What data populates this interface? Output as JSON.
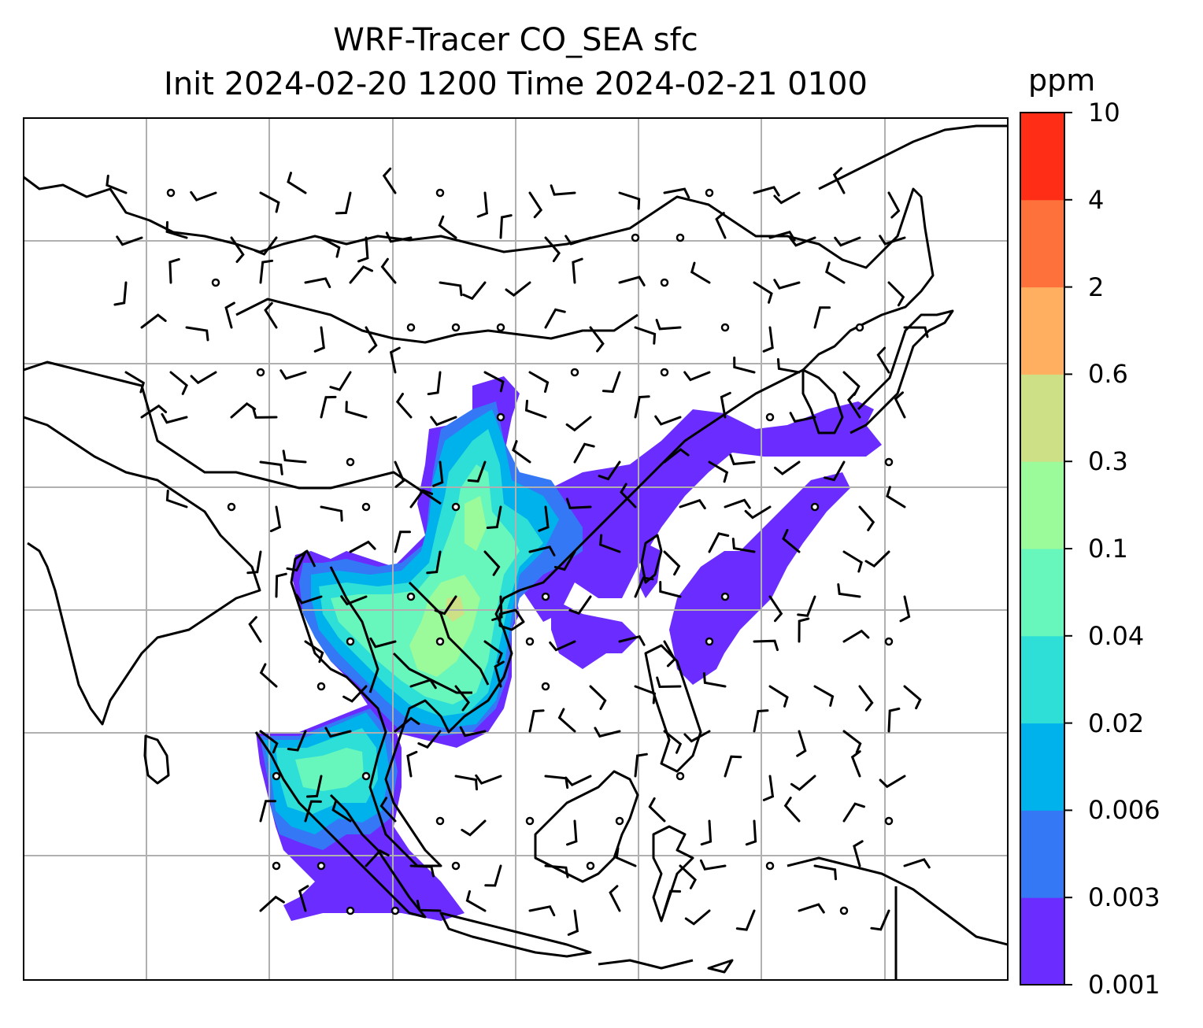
{
  "title": {
    "line1": "WRF-Tracer CO_SEA sfc",
    "line2": "Init 2024-02-20 1200 Time 2024-02-21 0100"
  },
  "colorbar": {
    "unit": "ppm",
    "levels": [
      "0.001",
      "0.003",
      "0.006",
      "0.02",
      "0.04",
      "0.1",
      "0.3",
      "0.6",
      "2",
      "4",
      "10"
    ],
    "colors": [
      "#6a2cff",
      "#3478f6",
      "#00b2ec",
      "#2ddfd6",
      "#67f7bd",
      "#9bfa99",
      "#cde086",
      "#ffaf5f",
      "#ff713b",
      "#ff2d16"
    ]
  },
  "map": {
    "coastline_color": "#000000",
    "grid_color": "#b0b0b0",
    "plume_colors": {
      "outer": "#6a2cff",
      "low": "#3478f6",
      "mid": "#00b2ec",
      "mid_high": "#2ddfd6",
      "high": "#67f7bd",
      "peak": "#9bfa99"
    }
  }
}
